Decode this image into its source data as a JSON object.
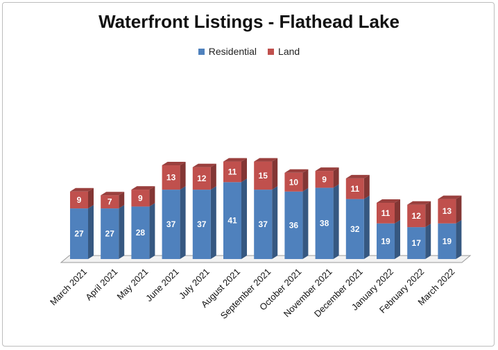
{
  "chart_data": {
    "type": "bar",
    "stacked": true,
    "style": "3d-column",
    "title": "Waterfront Listings - Flathead Lake",
    "xlabel": "",
    "ylabel": "",
    "legend_position": "top",
    "grid": false,
    "categories": [
      "March 2021",
      "April 2021",
      "May 2021",
      "June 2021",
      "July 2021",
      "August 2021",
      "September 2021",
      "October 2021",
      "November 2021",
      "December 2021",
      "January 2022",
      "February 2022",
      "March 2022"
    ],
    "series": [
      {
        "name": "Residential",
        "color": "#4f81bd",
        "values": [
          27,
          27,
          28,
          37,
          37,
          41,
          37,
          36,
          38,
          32,
          19,
          17,
          19
        ]
      },
      {
        "name": "Land",
        "color": "#c0504d",
        "values": [
          9,
          7,
          9,
          13,
          12,
          11,
          15,
          10,
          9,
          11,
          11,
          12,
          13
        ]
      }
    ],
    "ylim": [
      0,
      52
    ]
  }
}
